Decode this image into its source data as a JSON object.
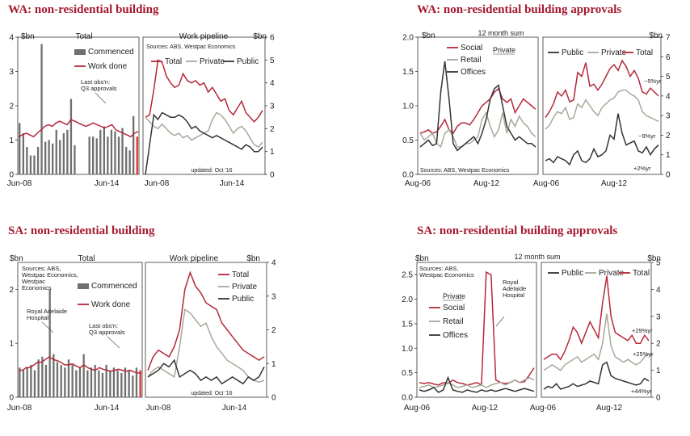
{
  "titles": {
    "wa_nonres": "WA: non-residential building",
    "wa_approvals": "WA: non-residential building approvals",
    "sa_nonres": "SA: non-residential building",
    "sa_approvals": "SA: non-residential building approvals"
  },
  "colors": {
    "total": "#b5283a",
    "private": "#a8a89a",
    "public": "#333333",
    "bars": "#6f6f6f",
    "latest_bar": "#e0332a",
    "title": "#a6192e"
  },
  "chart_data": [
    {
      "id": "wa-total",
      "type": "bar",
      "panel_label": "Total",
      "unit_left": "$bn",
      "ylim": [
        0,
        4
      ],
      "yticks": [
        "0",
        "1",
        "2",
        "3",
        "4"
      ],
      "xticks": [
        "Jun-08",
        "Jun-14"
      ],
      "legend": [
        "Commenced",
        "Work done"
      ],
      "annotations": [
        "Last obs'n:",
        "Q3 approvals"
      ],
      "series": [
        {
          "name": "Commenced",
          "values": [
            1.5,
            1.2,
            0.8,
            0.55,
            0.55,
            0.8,
            3.8,
            0.95,
            1.0,
            0.9,
            1.3,
            1.0,
            1.2,
            1.3,
            2.2,
            0.85,
            0.0,
            0.0,
            0.0,
            1.1,
            1.1,
            1.05,
            1.3,
            1.4,
            1.1,
            1.3,
            1.25,
            1.1,
            1.35,
            0.8,
            0.7,
            1.7,
            1.1
          ]
        },
        {
          "name": "Work done",
          "values": [
            1.1,
            1.15,
            1.2,
            1.15,
            1.1,
            1.2,
            1.3,
            1.4,
            1.45,
            1.4,
            1.5,
            1.55,
            1.5,
            1.45,
            1.6,
            1.55,
            1.5,
            1.45,
            1.4,
            1.45,
            1.5,
            1.45,
            1.4,
            1.35,
            1.4,
            1.45,
            1.3,
            1.25,
            1.2,
            1.15,
            1.1,
            1.2,
            1.25
          ]
        }
      ]
    },
    {
      "id": "wa-pipeline",
      "type": "line",
      "panel_label": "Work pipeline",
      "unit_right": "$bn",
      "ylim": [
        0,
        6
      ],
      "yticks": [
        "0",
        "1",
        "2",
        "3",
        "4",
        "5",
        "6"
      ],
      "xticks": [
        "Jun-08",
        "Jun-14"
      ],
      "note": "Sources: ABS, Westpac Economics",
      "updated": "updated: Oct '16",
      "series": [
        {
          "name": "Total",
          "values": [
            2.5,
            2.6,
            3.7,
            5.0,
            4.9,
            4.3,
            4.0,
            3.8,
            3.9,
            4.4,
            4.1,
            4.0,
            4.1,
            3.9,
            4.0,
            3.6,
            3.8,
            3.5,
            3.2,
            3.3,
            2.8,
            2.6,
            2.9,
            3.2,
            2.7,
            2.5,
            2.3,
            2.5,
            2.8
          ]
        },
        {
          "name": "Private",
          "values": [
            2.5,
            2.3,
            2.1,
            2.0,
            2.2,
            2.0,
            1.8,
            1.7,
            1.8,
            1.6,
            1.7,
            1.5,
            1.6,
            1.7,
            1.8,
            1.9,
            2.4,
            2.7,
            2.6,
            2.4,
            2.1,
            1.8,
            2.0,
            2.1,
            1.9,
            1.6,
            1.3,
            1.2,
            1.4
          ]
        },
        {
          "name": "Public",
          "values": [
            0.0,
            1.3,
            2.6,
            2.4,
            2.7,
            2.6,
            2.5,
            2.5,
            2.6,
            2.5,
            2.3,
            2.0,
            2.1,
            1.9,
            1.8,
            1.7,
            1.6,
            1.7,
            1.6,
            1.5,
            1.4,
            1.3,
            1.2,
            1.1,
            1.3,
            1.2,
            1.0,
            1.0,
            1.2
          ]
        }
      ]
    },
    {
      "id": "wa-approvals-composition",
      "type": "line",
      "header_label": "12 month sum",
      "unit_left": "$bn",
      "ylim": [
        0,
        2
      ],
      "yticks": [
        "0.0",
        "0.5",
        "1.0",
        "1.5",
        "2.0"
      ],
      "xticks": [
        "Aug-06",
        "Aug-12"
      ],
      "legend_heading": "Private",
      "note": "Sources: ABS, Westpac Economics",
      "series": [
        {
          "name": "Social",
          "values": [
            0.6,
            0.62,
            0.65,
            0.6,
            0.62,
            0.7,
            0.8,
            0.65,
            0.6,
            0.7,
            0.75,
            0.75,
            0.72,
            0.8,
            0.9,
            1.0,
            1.05,
            1.1,
            1.2,
            1.25,
            1.1,
            1.05,
            1.1,
            0.9,
            1.0,
            1.1,
            1.05,
            1.0,
            0.95
          ]
        },
        {
          "name": "Retail",
          "values": [
            0.6,
            0.5,
            0.55,
            0.6,
            0.45,
            0.4,
            0.6,
            0.65,
            0.55,
            0.4,
            0.4,
            0.45,
            0.45,
            0.5,
            0.55,
            0.8,
            0.9,
            0.7,
            0.55,
            0.65,
            0.9,
            0.6,
            0.8,
            0.7,
            0.85,
            0.75,
            0.7,
            0.6,
            0.55
          ]
        },
        {
          "name": "Offices",
          "values": [
            0.4,
            0.45,
            0.5,
            0.42,
            0.45,
            1.2,
            1.65,
            1.1,
            0.45,
            0.35,
            0.4,
            0.45,
            0.5,
            0.55,
            0.45,
            0.6,
            0.8,
            1.1,
            1.25,
            1.3,
            1.0,
            0.7,
            0.6,
            0.5,
            0.55,
            0.5,
            0.45,
            0.45,
            0.4
          ]
        }
      ]
    },
    {
      "id": "wa-approvals-sector",
      "type": "line",
      "unit_right": "$bn",
      "ylim": [
        0,
        7
      ],
      "yticks": [
        "0",
        "1",
        "2",
        "3",
        "4",
        "5",
        "6",
        "7"
      ],
      "legend": [
        "Public",
        "Private",
        "Total"
      ],
      "annotations": [
        "~5%yr",
        "~9%yr",
        "+2%yr"
      ],
      "series": [
        {
          "name": "Public",
          "values": [
            0.7,
            0.8,
            0.6,
            0.9,
            0.8,
            0.7,
            0.5,
            1.0,
            1.2,
            0.7,
            0.6,
            0.8,
            1.3,
            0.9,
            1.0,
            1.2,
            2.0,
            1.8,
            3.1,
            2.1,
            1.5,
            1.6,
            1.7,
            1.2,
            1.1,
            1.4,
            1.0,
            1.3,
            1.5
          ]
        },
        {
          "name": "Private",
          "values": [
            2.3,
            2.5,
            2.9,
            3.2,
            3.1,
            3.4,
            2.8,
            2.9,
            3.6,
            3.4,
            3.8,
            3.5,
            3.2,
            3.0,
            3.4,
            3.6,
            3.8,
            3.9,
            4.2,
            4.3,
            4.3,
            4.1,
            4.0,
            3.8,
            3.2,
            3.0,
            2.9,
            2.8,
            2.7
          ]
        },
        {
          "name": "Total",
          "values": [
            2.9,
            3.2,
            3.6,
            4.2,
            4.0,
            4.3,
            3.7,
            3.8,
            5.2,
            5.0,
            5.7,
            4.5,
            4.6,
            4.3,
            4.6,
            5.0,
            5.4,
            5.6,
            5.3,
            5.8,
            5.5,
            5.0,
            5.3,
            4.9,
            4.2,
            4.1,
            4.4,
            4.2,
            4.0
          ]
        }
      ]
    },
    {
      "id": "sa-total",
      "type": "bar",
      "panel_label": "Total",
      "unit_left": "$bn",
      "ylim": [
        0,
        2.5
      ],
      "yticks": [
        "0",
        "1",
        "2"
      ],
      "xticks": [
        "Jun-08",
        "Jun-14"
      ],
      "note": "Sources: ABS, Westpac Economics",
      "legend": [
        "Commenced",
        "Work done"
      ],
      "annotations": [
        "Royal Adelaide Hospital",
        "Last obs'n:",
        "Q3 approvals"
      ],
      "series": [
        {
          "name": "Commenced",
          "values": [
            0.55,
            0.5,
            0.55,
            0.6,
            0.5,
            0.7,
            0.75,
            0.6,
            2.0,
            0.8,
            0.65,
            0.6,
            0.55,
            0.7,
            0.6,
            0.5,
            0.55,
            0.8,
            0.5,
            0.55,
            0.6,
            0.5,
            0.45,
            0.6,
            0.5,
            0.55,
            0.5,
            0.45,
            0.55,
            0.5,
            0.4,
            0.55,
            0.5
          ]
        },
        {
          "name": "Work done",
          "values": [
            0.5,
            0.5,
            0.55,
            0.55,
            0.6,
            0.65,
            0.65,
            0.7,
            0.75,
            0.7,
            0.68,
            0.65,
            0.6,
            0.6,
            0.62,
            0.58,
            0.55,
            0.6,
            0.55,
            0.52,
            0.5,
            0.55,
            0.52,
            0.5,
            0.48,
            0.5,
            0.52,
            0.5,
            0.48,
            0.5,
            0.47,
            0.45,
            0.45
          ]
        }
      ]
    },
    {
      "id": "sa-pipeline",
      "type": "line",
      "panel_label": "Work pipeline",
      "unit_right": "$bn",
      "ylim": [
        0,
        4
      ],
      "yticks": [
        "0",
        "1",
        "2",
        "3",
        "4"
      ],
      "xticks": [
        "Jun-08",
        "Jun-14"
      ],
      "updated": "updated: Oct '16",
      "series": [
        {
          "name": "Total",
          "values": [
            0.8,
            1.2,
            1.4,
            1.3,
            1.2,
            1.5,
            2.0,
            3.2,
            3.7,
            3.3,
            3.1,
            2.8,
            2.7,
            2.6,
            2.2,
            2.0,
            1.8,
            1.6,
            1.4,
            1.3,
            1.2,
            1.1,
            1.2
          ]
        },
        {
          "name": "Private",
          "values": [
            0.6,
            0.8,
            0.9,
            0.8,
            0.7,
            0.6,
            1.5,
            2.6,
            2.5,
            2.3,
            2.1,
            2.2,
            1.8,
            1.5,
            1.3,
            1.1,
            1.0,
            0.9,
            0.8,
            0.6,
            0.5,
            0.45,
            0.5
          ]
        },
        {
          "name": "Public",
          "values": [
            0.6,
            0.7,
            0.8,
            1.0,
            0.9,
            1.1,
            0.6,
            0.7,
            0.8,
            0.7,
            0.5,
            0.6,
            0.5,
            0.6,
            0.4,
            0.5,
            0.6,
            0.5,
            0.4,
            0.6,
            0.5,
            0.6,
            0.9
          ]
        }
      ]
    },
    {
      "id": "sa-approvals-composition",
      "type": "line",
      "header_label": "12 month sum",
      "unit_left": "$bn",
      "ylim": [
        0,
        2.75
      ],
      "yticks": [
        "0.0",
        "0.5",
        "1.0",
        "1.5",
        "2.0",
        "2.5"
      ],
      "xticks": [
        "Aug-06",
        "Aug-12"
      ],
      "note": "Sources: ABS, Westpac Economics",
      "legend_heading": "Private",
      "annotations": [
        "Royal Adelaide Hospital"
      ],
      "series": [
        {
          "name": "Social",
          "values": [
            0.3,
            0.28,
            0.3,
            0.27,
            0.25,
            0.3,
            0.28,
            0.35,
            0.3,
            0.28,
            0.25,
            0.27,
            0.3,
            0.25,
            2.55,
            2.5,
            0.35,
            0.3,
            0.28,
            0.3,
            0.35,
            0.3,
            0.32,
            0.45,
            0.6
          ]
        },
        {
          "name": "Retail",
          "values": [
            0.2,
            0.22,
            0.25,
            0.2,
            0.22,
            0.25,
            0.3,
            0.25,
            0.2,
            0.22,
            0.25,
            0.2,
            0.22,
            0.25,
            0.2,
            0.25,
            0.28,
            0.3,
            0.25,
            0.3,
            0.35,
            0.3,
            0.35,
            0.4,
            0.35
          ]
        },
        {
          "name": "Offices",
          "values": [
            0.15,
            0.12,
            0.15,
            0.2,
            0.1,
            0.15,
            0.4,
            0.15,
            0.12,
            0.1,
            0.15,
            0.12,
            0.1,
            0.15,
            0.12,
            0.15,
            0.12,
            0.15,
            0.18,
            0.15,
            0.12,
            0.15,
            0.18,
            0.15,
            0.12
          ]
        }
      ]
    },
    {
      "id": "sa-approvals-sector",
      "type": "line",
      "unit_right": "$bn",
      "ylim": [
        0,
        5
      ],
      "yticks": [
        "0",
        "1",
        "2",
        "3",
        "4",
        "5"
      ],
      "legend": [
        "Public",
        "Private",
        "Total"
      ],
      "annotations": [
        "+29%yr",
        "+25%yr",
        "+44%yr"
      ],
      "series": [
        {
          "name": "Public",
          "values": [
            0.3,
            0.4,
            0.35,
            0.5,
            0.3,
            0.35,
            0.4,
            0.5,
            0.4,
            0.45,
            0.5,
            0.6,
            0.55,
            0.5,
            1.2,
            1.3,
            0.8,
            0.7,
            0.65,
            0.6,
            0.55,
            0.5,
            0.45,
            0.5,
            0.7,
            0.6
          ]
        },
        {
          "name": "Private",
          "values": [
            1.0,
            1.1,
            1.2,
            1.1,
            1.0,
            1.2,
            1.3,
            1.4,
            1.5,
            1.3,
            1.4,
            1.5,
            1.6,
            1.4,
            2.0,
            3.1,
            1.9,
            1.5,
            1.4,
            1.3,
            1.4,
            1.3,
            1.2,
            1.3,
            1.5,
            1.6
          ]
        },
        {
          "name": "Total",
          "values": [
            1.4,
            1.5,
            1.6,
            1.6,
            1.4,
            1.7,
            2.1,
            2.6,
            2.4,
            2.0,
            2.4,
            2.8,
            2.5,
            2.2,
            3.5,
            4.5,
            3.0,
            2.4,
            2.3,
            2.2,
            2.1,
            2.3,
            2.0,
            2.0,
            2.3,
            2.1
          ]
        }
      ]
    }
  ]
}
